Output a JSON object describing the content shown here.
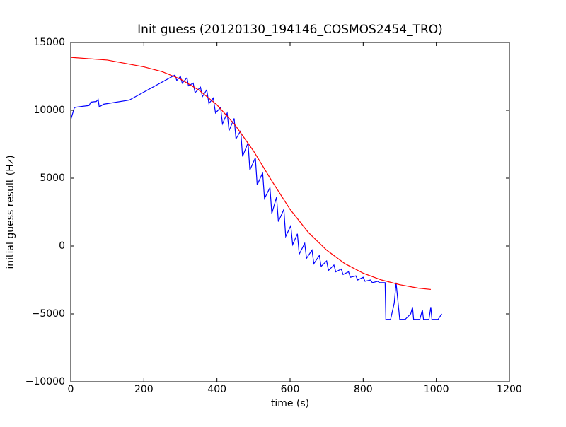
{
  "chart_data": {
    "type": "line",
    "title": "Init guess (20120130_194146_COSMOS2454_TRO)",
    "x_label": "time (s)",
    "y_label": "initial guess result (Hz)",
    "xlim": [
      0,
      1200
    ],
    "xticks": [
      0,
      200,
      400,
      600,
      800,
      1000,
      1200
    ],
    "ylim": [
      -10000,
      15000
    ],
    "yticks": [
      {
        "value": -10000,
        "label": "−10000"
      },
      {
        "value": -5000,
        "label": "−5000"
      },
      0,
      5000,
      10000,
      15000
    ],
    "grid": false,
    "series": [
      {
        "color": "#0000ff",
        "x": [
          0,
          10,
          20,
          50,
          55,
          70,
          75,
          78,
          90,
          160,
          285,
          290,
          300,
          305,
          318,
          322,
          335,
          340,
          355,
          360,
          372,
          378,
          390,
          396,
          410,
          415,
          428,
          433,
          447,
          452,
          465,
          470,
          485,
          490,
          505,
          510,
          525,
          530,
          545,
          550,
          563,
          568,
          583,
          588,
          602,
          607,
          620,
          625,
          640,
          645,
          660,
          665,
          680,
          685,
          700,
          705,
          720,
          725,
          740,
          745,
          760,
          765,
          780,
          785,
          800,
          805,
          820,
          825,
          840,
          845,
          860,
          862,
          875,
          885,
          890,
          900,
          915,
          930,
          935,
          938,
          955,
          962,
          965,
          980,
          985,
          988,
          1005,
          1015
        ],
        "values": [
          9300,
          10200,
          10250,
          10350,
          10600,
          10650,
          10800,
          10250,
          10450,
          10750,
          12600,
          12200,
          12500,
          12000,
          12400,
          11800,
          12000,
          11300,
          11700,
          11000,
          11500,
          10500,
          10900,
          9800,
          10200,
          9000,
          9800,
          8500,
          9400,
          7900,
          8500,
          6600,
          7600,
          5600,
          6500,
          4500,
          5400,
          3500,
          4300,
          2400,
          3600,
          1800,
          2700,
          700,
          1500,
          100,
          900,
          -600,
          200,
          -900,
          -300,
          -1300,
          -700,
          -1500,
          -1100,
          -1800,
          -1400,
          -1900,
          -1700,
          -2100,
          -1900,
          -2300,
          -2200,
          -2500,
          -2300,
          -2600,
          -2500,
          -2700,
          -2600,
          -2700,
          -2700,
          -5400,
          -5400,
          -4200,
          -2700,
          -5400,
          -5400,
          -5000,
          -4500,
          -5400,
          -5400,
          -4700,
          -5400,
          -5400,
          -4500,
          -5400,
          -5400,
          -5000
        ]
      },
      {
        "color": "#ff0000",
        "x": [
          0,
          100,
          200,
          250,
          300,
          350,
          400,
          450,
          500,
          550,
          600,
          650,
          700,
          750,
          800,
          850,
          900,
          950,
          985
        ],
        "values": [
          13900,
          13700,
          13200,
          12850,
          12300,
          11500,
          10400,
          8900,
          7000,
          4800,
          2700,
          1000,
          -300,
          -1300,
          -2000,
          -2500,
          -2850,
          -3100,
          -3200
        ]
      }
    ]
  }
}
